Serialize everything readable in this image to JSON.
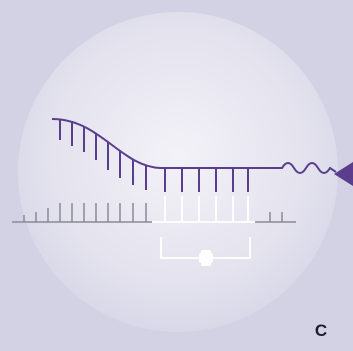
{
  "label": "C"
}
